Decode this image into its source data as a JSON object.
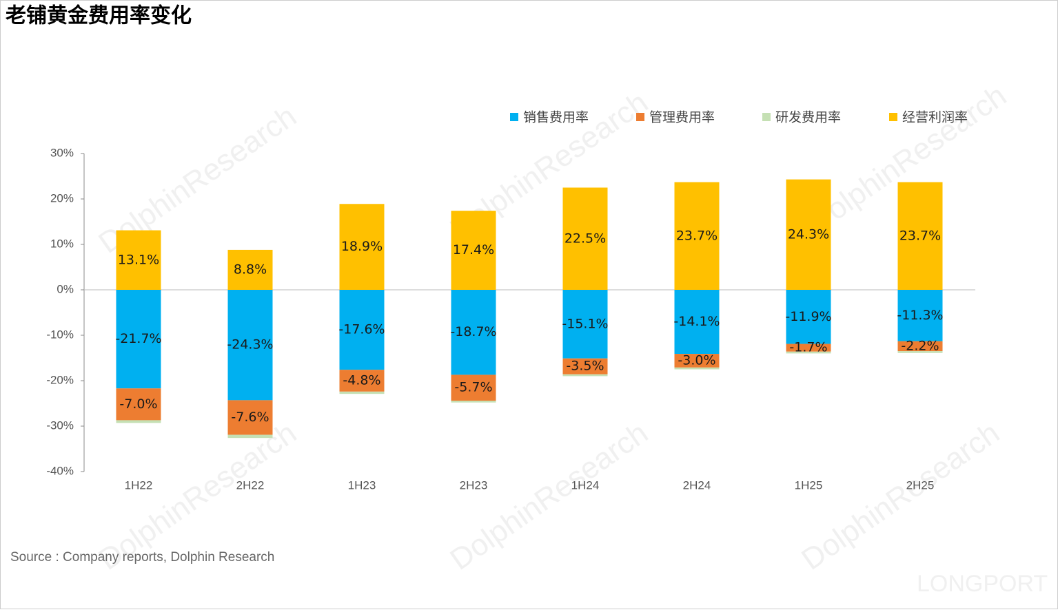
{
  "chart_data": {
    "type": "stacked-bar",
    "title": "老铺黄金费用率变化",
    "source": "Source : Company reports, Dolphin Research",
    "watermarks": [
      "DolphinResearch",
      "LONGPORT"
    ],
    "categories": [
      "1H22",
      "2H22",
      "1H23",
      "2H23",
      "1H24",
      "2H24",
      "1H25",
      "2H25"
    ],
    "series": [
      {
        "name": "销售费用率",
        "color": "#00b0f0",
        "values": [
          -21.7,
          -24.3,
          -17.6,
          -18.7,
          -15.1,
          -14.1,
          -11.9,
          -11.3
        ],
        "value_labels": [
          "-21.7%",
          "-24.3%",
          "-17.6%",
          "-18.7%",
          "-15.1%",
          "-14.1%",
          "-11.9%",
          "-11.3%"
        ]
      },
      {
        "name": "管理费用率",
        "color": "#ed7d31",
        "values": [
          -7.0,
          -7.6,
          -4.8,
          -5.7,
          -3.5,
          -3.0,
          -1.7,
          -2.2
        ],
        "value_labels": [
          "-7.0%",
          "-7.6%",
          "-4.8%",
          "-5.7%",
          "-3.5%",
          "-3.0%",
          "-1.7%",
          "-2.2%"
        ]
      },
      {
        "name": "研发费用率",
        "color": "#c5e0b4",
        "values": [
          -0.6,
          -0.7,
          -0.5,
          -0.4,
          -0.4,
          -0.4,
          -0.4,
          -0.4
        ]
      },
      {
        "name": "经营利润率",
        "color": "#ffc000",
        "values": [
          13.1,
          8.8,
          18.9,
          17.4,
          22.5,
          23.7,
          24.3,
          23.7
        ],
        "value_labels": [
          "13.1%",
          "8.8%",
          "18.9%",
          "17.4%",
          "22.5%",
          "23.7%",
          "24.3%",
          "23.7%"
        ]
      }
    ],
    "ylim": [
      -40,
      30
    ],
    "yticks": [
      {
        "value": -40,
        "label": "-40%"
      },
      {
        "value": -30,
        "label": "-30%"
      },
      {
        "value": -20,
        "label": "-20%"
      },
      {
        "value": -10,
        "label": "-10%"
      },
      {
        "value": 0,
        "label": "0%"
      },
      {
        "value": 10,
        "label": "10%"
      },
      {
        "value": 20,
        "label": "20%"
      },
      {
        "value": 30,
        "label": "30%"
      }
    ],
    "legend": "top-right"
  }
}
